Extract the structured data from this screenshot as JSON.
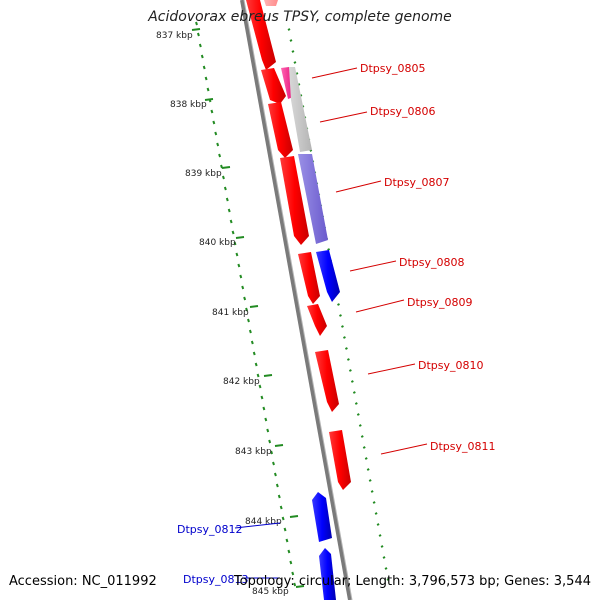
{
  "title": "Acidovorax ebreus TPSY, complete genome",
  "accession": "Accession: NC_011992",
  "topology": "Topology: circular; Length: 3,796,573 bp; Genes: 3,544",
  "colors": {
    "backbone": "#808080",
    "gc_ticks": "#228b22",
    "forward_gene": "#ff0000",
    "reverse_gene": "#0000ee",
    "label_forward": "#d40000",
    "label_reverse": "#0000cc"
  },
  "scale_labels": [
    "837 kbp",
    "838 kbp",
    "839 kbp",
    "840 kbp",
    "841 kbp",
    "842 kbp",
    "843 kbp",
    "844 kbp",
    "845 kbp"
  ],
  "gene_labels": [
    {
      "text": "Dtpsy_0805",
      "strand": "forward"
    },
    {
      "text": "Dtpsy_0806",
      "strand": "forward"
    },
    {
      "text": "Dtpsy_0807",
      "strand": "forward"
    },
    {
      "text": "Dtpsy_0808",
      "strand": "forward"
    },
    {
      "text": "Dtpsy_0809",
      "strand": "forward"
    },
    {
      "text": "Dtpsy_0810",
      "strand": "forward"
    },
    {
      "text": "Dtpsy_0811",
      "strand": "forward"
    },
    {
      "text": "Dtpsy_0812",
      "strand": "reverse"
    },
    {
      "text": "Dtpsy_0813",
      "strand": "reverse"
    }
  ]
}
